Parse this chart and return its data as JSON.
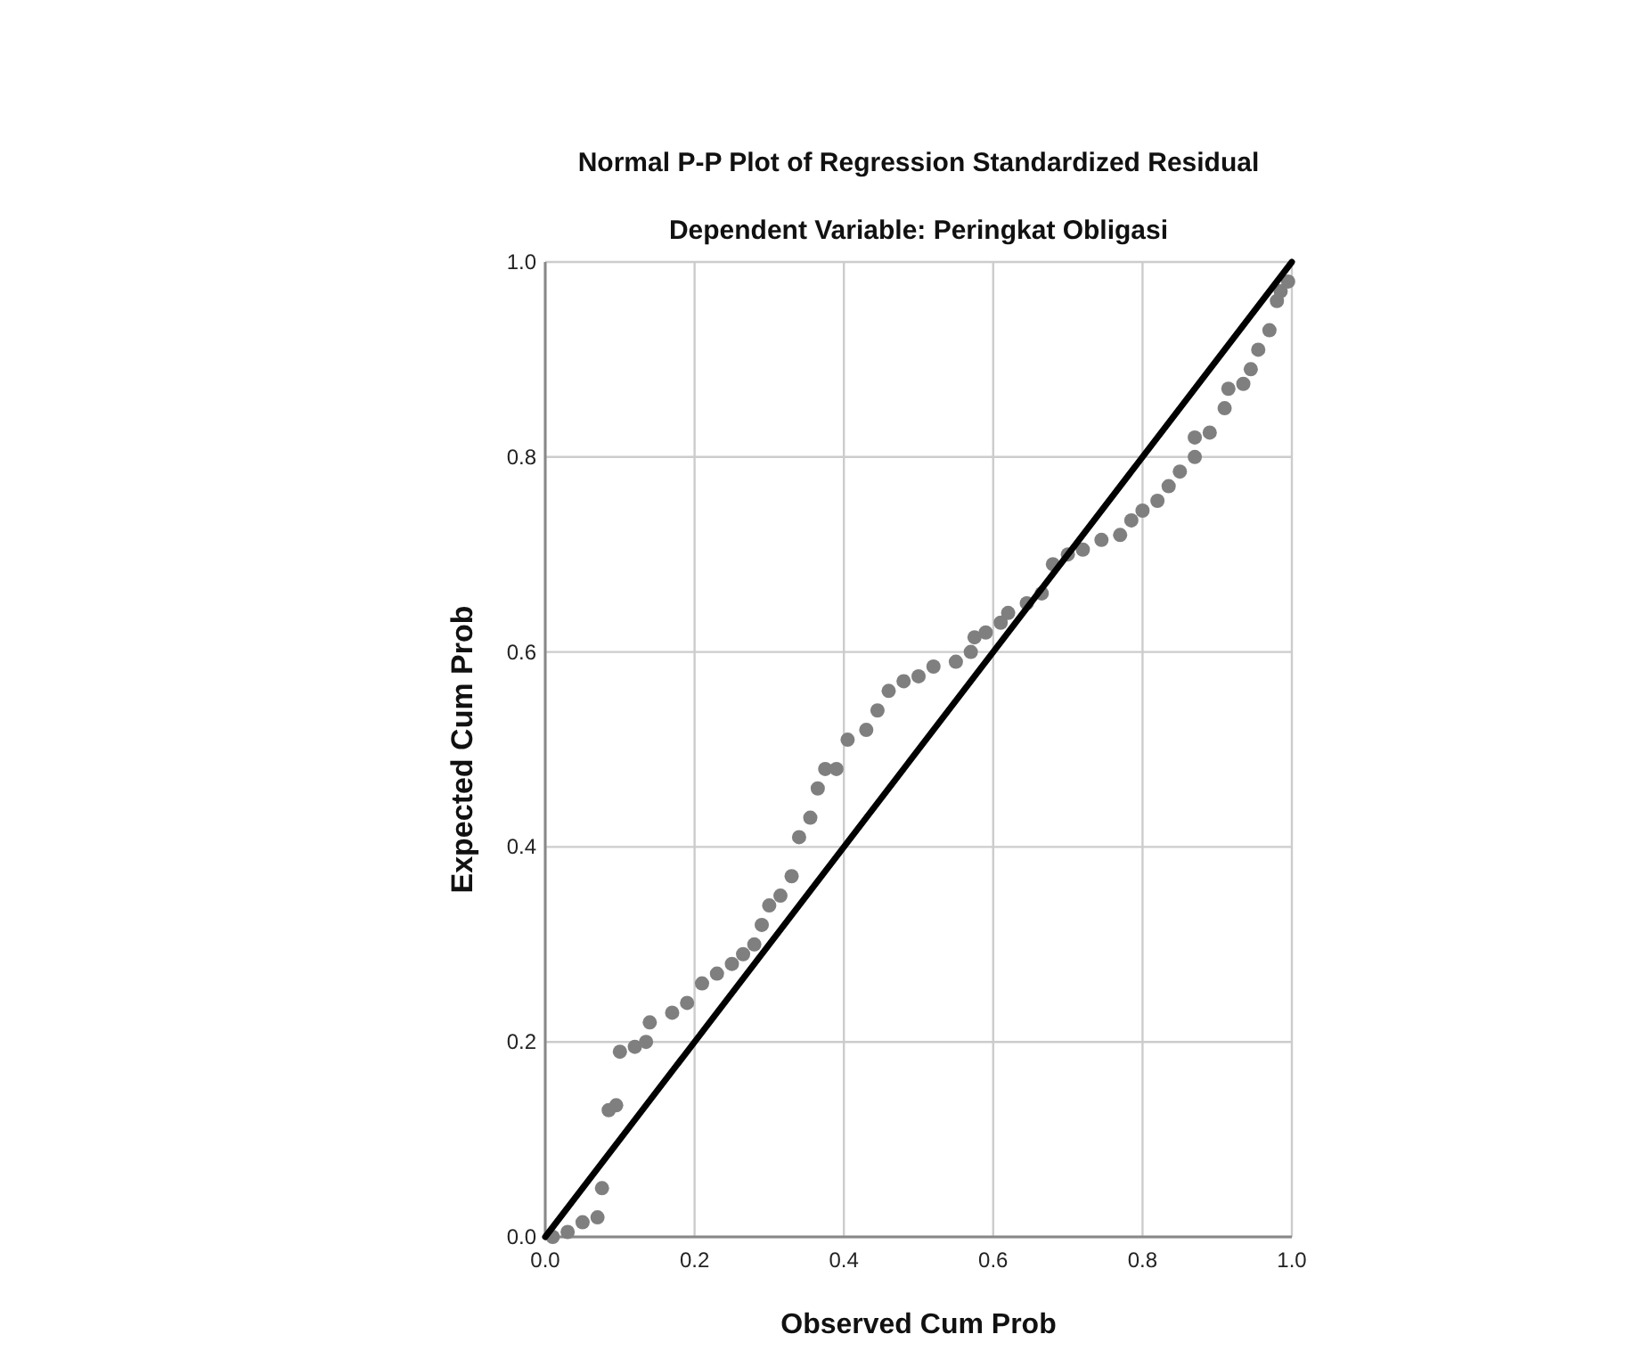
{
  "chart_data": {
    "type": "scatter",
    "title": "Normal P-P Plot of Regression Standardized Residual",
    "subtitle": "Dependent Variable: Peringkat Obligasi",
    "xlabel": "Observed Cum Prob",
    "ylabel": "Expected Cum Prob",
    "xlim": [
      0,
      1
    ],
    "ylim": [
      0,
      1
    ],
    "xticks": [
      {
        "value": 0,
        "label": "0.0"
      },
      {
        "value": 0.2,
        "label": "0.2"
      },
      {
        "value": 0.4,
        "label": "0.4"
      },
      {
        "value": 0.6,
        "label": "0.6"
      },
      {
        "value": 0.8,
        "label": "0.8"
      },
      {
        "value": 1,
        "label": "1.0"
      }
    ],
    "yticks": [
      {
        "value": 0,
        "label": "0.0"
      },
      {
        "value": 0.2,
        "label": "0.2"
      },
      {
        "value": 0.4,
        "label": "0.4"
      },
      {
        "value": 0.6,
        "label": "0.6"
      },
      {
        "value": 0.8,
        "label": "0.8"
      },
      {
        "value": 1,
        "label": "1.0"
      }
    ],
    "grid": true,
    "series": [
      {
        "color": "#7f7f7f",
        "marker": "circle",
        "x": [
          0.01,
          0.03,
          0.05,
          0.07,
          0.076,
          0.085,
          0.095,
          0.1,
          0.12,
          0.135,
          0.14,
          0.17,
          0.19,
          0.21,
          0.23,
          0.25,
          0.265,
          0.28,
          0.29,
          0.3,
          0.315,
          0.33,
          0.34,
          0.355,
          0.365,
          0.375,
          0.39,
          0.405,
          0.43,
          0.445,
          0.46,
          0.48,
          0.5,
          0.52,
          0.55,
          0.57,
          0.575,
          0.59,
          0.61,
          0.62,
          0.645,
          0.665,
          0.68,
          0.7,
          0.72,
          0.745,
          0.77,
          0.785,
          0.8,
          0.82,
          0.835,
          0.85,
          0.87,
          0.87,
          0.89,
          0.91,
          0.915,
          0.935,
          0.945,
          0.955,
          0.97,
          0.98,
          0.985,
          0.995
        ],
        "values": [
          0,
          0.005,
          0.015,
          0.02,
          0.05,
          0.13,
          0.135,
          0.19,
          0.195,
          0.2,
          0.22,
          0.23,
          0.24,
          0.26,
          0.27,
          0.28,
          0.29,
          0.3,
          0.32,
          0.34,
          0.35,
          0.37,
          0.41,
          0.43,
          0.46,
          0.48,
          0.48,
          0.51,
          0.52,
          0.54,
          0.56,
          0.57,
          0.575,
          0.585,
          0.59,
          0.6,
          0.615,
          0.62,
          0.63,
          0.64,
          0.65,
          0.66,
          0.69,
          0.7,
          0.705,
          0.715,
          0.72,
          0.735,
          0.745,
          0.755,
          0.77,
          0.785,
          0.8,
          0.82,
          0.825,
          0.85,
          0.87,
          0.875,
          0.89,
          0.91,
          0.93,
          0.96,
          0.97,
          0.98
        ]
      },
      {
        "type": "line",
        "color": "#000000",
        "marker": "none",
        "line_style": "solid",
        "x": [
          0,
          1
        ],
        "values": [
          0,
          1
        ]
      }
    ]
  }
}
